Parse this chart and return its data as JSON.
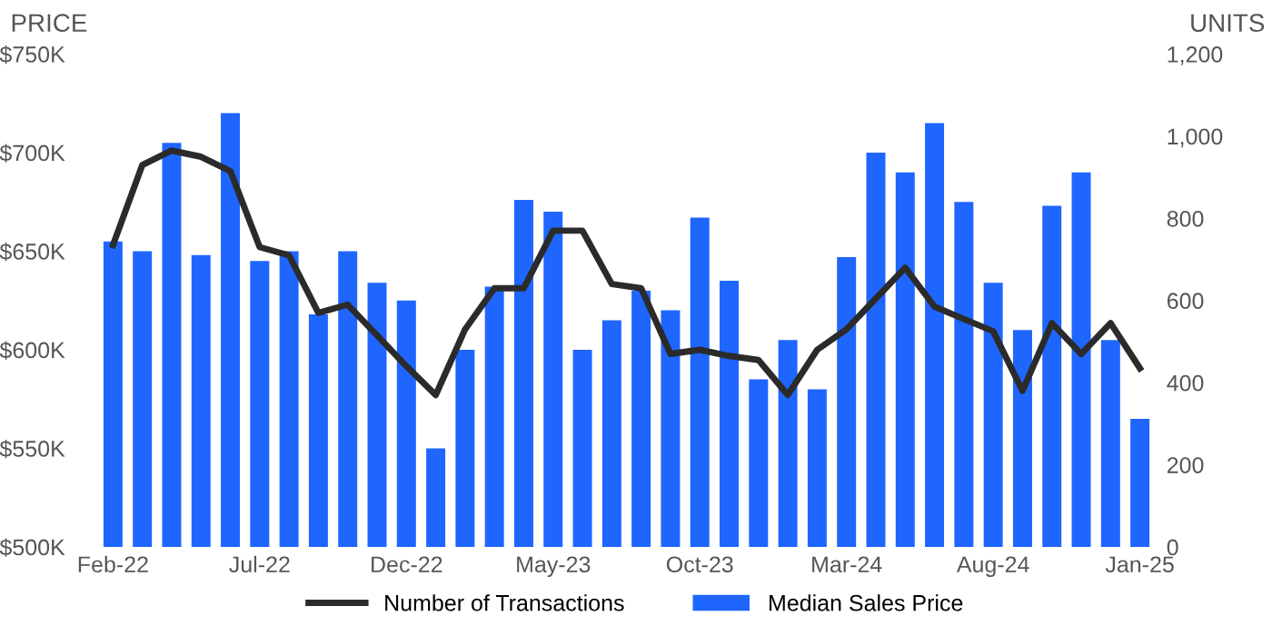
{
  "chart_data": {
    "type": "bar",
    "categories": [
      "Feb-22",
      null,
      null,
      null,
      null,
      "Jul-22",
      null,
      null,
      null,
      null,
      "Dec-22",
      null,
      null,
      null,
      null,
      "May-23",
      null,
      null,
      null,
      null,
      "Oct-23",
      null,
      null,
      null,
      null,
      "Mar-24",
      null,
      null,
      null,
      null,
      "Aug-24",
      null,
      null,
      null,
      null,
      "Jan-25"
    ],
    "series": [
      {
        "name": "Number of Transactions",
        "type": "line",
        "axis": "y2",
        "color": "#2b2b2b",
        "values": [
          735,
          930,
          965,
          950,
          915,
          730,
          710,
          570,
          590,
          515,
          440,
          370,
          530,
          630,
          630,
          770,
          770,
          640,
          630,
          470,
          480,
          465,
          455,
          370,
          480,
          530,
          605,
          680,
          585,
          555,
          525,
          380,
          545,
          470,
          545,
          435
        ]
      },
      {
        "name": "Median Sales Price",
        "color": "#1f66ff",
        "values": [
          655000,
          650000,
          705000,
          648000,
          720000,
          645000,
          650000,
          618000,
          650000,
          634000,
          625000,
          550000,
          600000,
          632000,
          676000,
          670000,
          600000,
          615000,
          630000,
          620000,
          667000,
          635000,
          585000,
          605000,
          580000,
          647000,
          700000,
          690000,
          715000,
          675000,
          634000,
          610000,
          673000,
          690000,
          605000,
          565000
        ]
      }
    ],
    "ylabel": "PRICE",
    "y2label": "UNITS",
    "ylim": [
      500000,
      750000
    ],
    "yticks": [
      {
        "value": 500000,
        "label": "$500K"
      },
      {
        "value": 550000,
        "label": "$550K"
      },
      {
        "value": 600000,
        "label": "$600K"
      },
      {
        "value": 650000,
        "label": "$650K"
      },
      {
        "value": 700000,
        "label": "$700K"
      },
      {
        "value": 750000,
        "label": "$750K"
      }
    ],
    "y2lim": [
      0,
      1200
    ],
    "y2ticks": [
      0,
      200,
      400,
      600,
      800,
      {
        "value": 1000,
        "label": "1,000"
      },
      {
        "value": 1200,
        "label": "1,200"
      }
    ],
    "legend": "bottom",
    "grid": false
  }
}
